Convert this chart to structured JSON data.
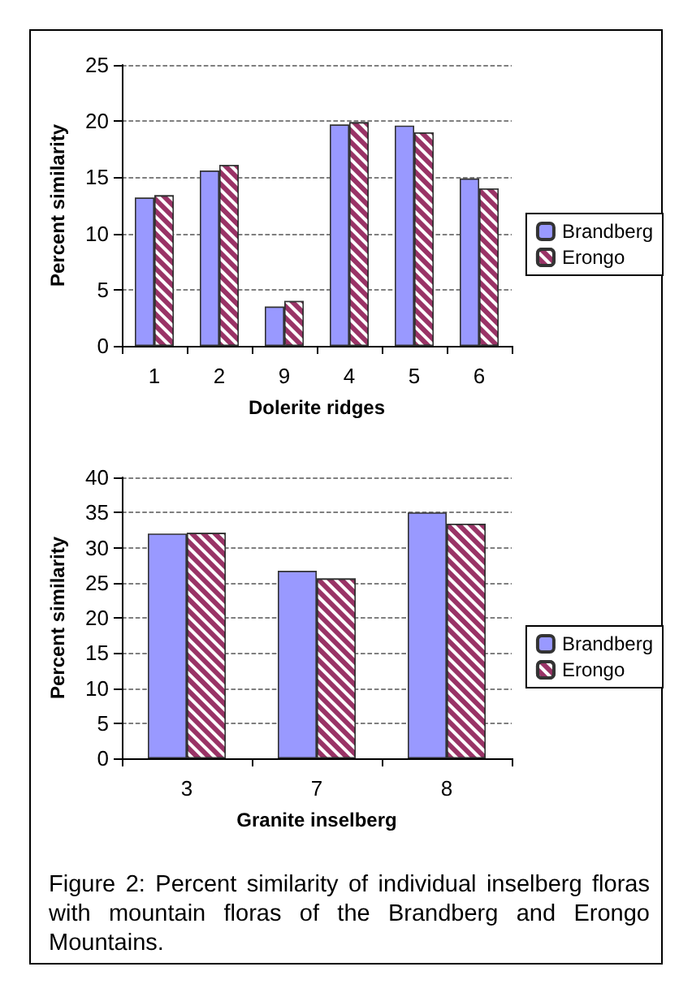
{
  "chart_data": [
    {
      "type": "bar",
      "xlabel": "Dolerite ridges",
      "ylabel": "Percent similarity",
      "categories": [
        "1",
        "2",
        "9",
        "4",
        "5",
        "6"
      ],
      "series": [
        {
          "name": "Brandberg",
          "color": "#9999ff",
          "values": [
            13.2,
            15.6,
            3.5,
            19.7,
            19.6,
            14.9
          ]
        },
        {
          "name": "Erongo",
          "color": "#993366",
          "values": [
            13.4,
            16.1,
            4.0,
            19.9,
            19.0,
            14.0
          ]
        }
      ],
      "ylim": [
        0,
        25
      ],
      "yticks": [
        0,
        5,
        10,
        15,
        20,
        25
      ],
      "grid": "y",
      "legend": "right"
    },
    {
      "type": "bar",
      "xlabel": "Granite inselberg",
      "ylabel": "Percent similarity",
      "categories": [
        "3",
        "7",
        "8"
      ],
      "series": [
        {
          "name": "Brandberg",
          "color": "#9999ff",
          "values": [
            32.0,
            26.7,
            35.0
          ]
        },
        {
          "name": "Erongo",
          "color": "#993366",
          "values": [
            32.1,
            25.6,
            33.4
          ]
        }
      ],
      "ylim": [
        0,
        40
      ],
      "yticks": [
        0,
        5,
        10,
        15,
        20,
        25,
        30,
        35,
        40
      ],
      "grid": "y",
      "legend": "right",
      "annotations": [
        "Figure 2: Percent similarity of individual inselberg floras with mountain floras of the Brandberg and Erongo Mountains."
      ]
    }
  ]
}
